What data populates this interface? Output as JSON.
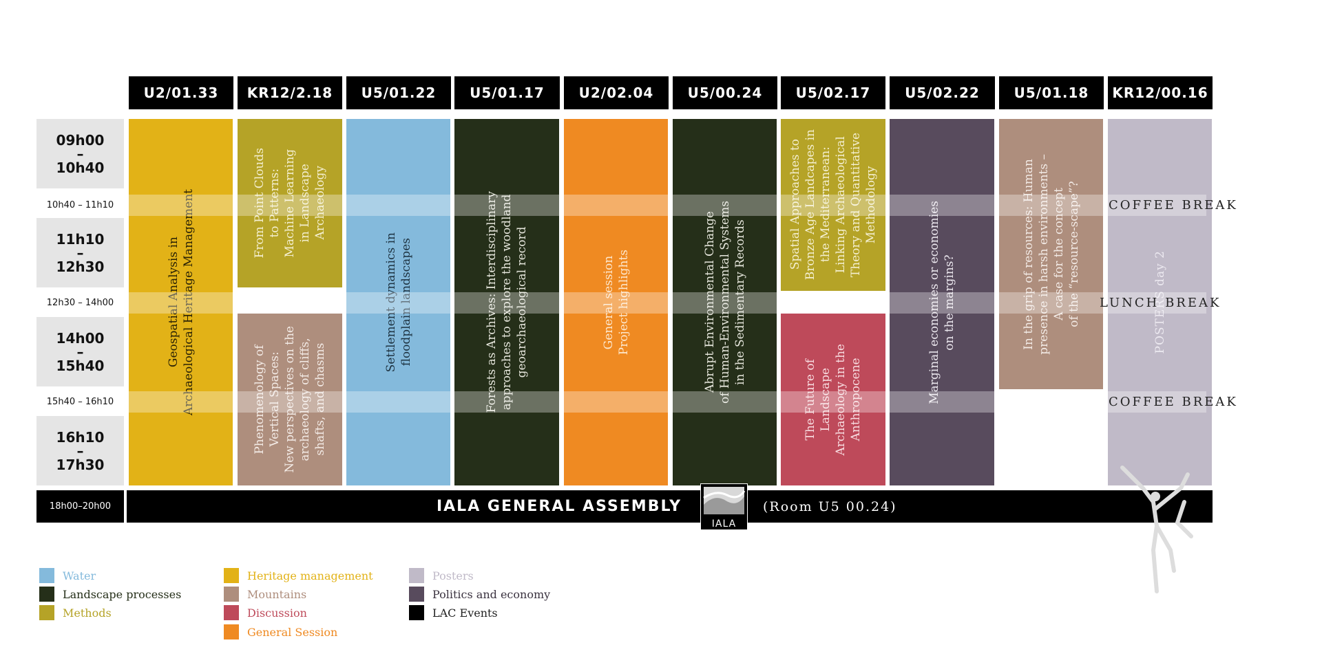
{
  "rooms": [
    "U2/01.33",
    "KR12/2.18",
    "U5/01.22",
    "U5/01.17",
    "U2/02.04",
    "U5/00.24",
    "U5/02.17",
    "U5/02.22",
    "U5/01.18",
    "KR12/00.16"
  ],
  "times": {
    "slot1": {
      "start": "09h00",
      "dash": "–",
      "end": "10h40"
    },
    "break1": "10h40 – 11h10",
    "slot2": {
      "start": "11h10",
      "dash": "–",
      "end": "12h30"
    },
    "break2": "12h30 – 14h00",
    "slot3": {
      "start": "14h00",
      "dash": "–",
      "end": "15h40"
    },
    "break3": "15h40 – 16h10",
    "slot4": {
      "start": "16h10",
      "dash": "–",
      "end": "17h30"
    },
    "evening": "18h00–20h00"
  },
  "breaks": {
    "coffee1": "COFFEE BREAK",
    "lunch": "LUNCH  BREAK",
    "coffee2": "COFFEE BREAK"
  },
  "sessions": [
    {
      "title": "Geospatial Analysis in\nArchaeological Heritage Management",
      "category": "Heritage management"
    },
    {
      "title": "From Point Clouds\nto Patterns:\nMachine Learning\nin Landscape\nArchaeology",
      "category": "Methods"
    },
    {
      "title": "Phenomenology of\nVertical Spaces:\nNew perspectives on the\narchaeology of cliffs,\nshafts, and chasms",
      "category": "Mountains"
    },
    {
      "title": "Settlement dynamics in\nfloodplain landscapes",
      "category": "Water"
    },
    {
      "title": "Forests as Archives: Interdisciplinary\napproaches to explore the woodland\ngeoarchaeological record",
      "category": "Landscape processes"
    },
    {
      "title": "General session\nProject highlights",
      "category": "General Session"
    },
    {
      "title": "Abrupt Environmental Change\nof Human-Environmental Systems\nin the Sedimentary Records",
      "category": "Landscape processes"
    },
    {
      "title": "Spatial Approaches to\nBronze Age Landcapes in\nthe Mediterranean:\nLinking Archaeological\nTheory and Quantitative\nMethodology",
      "category": "Methods"
    },
    {
      "title": "The Future of\nLandscape\nArchaeology in the\nAnthropocene",
      "category": "Discussion"
    },
    {
      "title": "Marginal economies or economies\non the margins?",
      "category": "Politics and economy"
    },
    {
      "title": "In the grip of resources: Human\npresence in harsh environments –\nA case for the concept\nof the “resource-scape”?",
      "category": "Mountains"
    },
    {
      "title": "POSTERS  day 2",
      "category": "Posters"
    }
  ],
  "assembly": {
    "title": "IALA GENERAL ASSEMBLY",
    "room": "(Room U5 00.24)",
    "logo_text": "IALA"
  },
  "legend": [
    {
      "label": "Water",
      "color": "#84BADC"
    },
    {
      "label": "Landscape processes",
      "color": "#252F19"
    },
    {
      "label": "Methods",
      "color": "#B5A327"
    },
    {
      "label": "Heritage management",
      "color": "#E2B217"
    },
    {
      "label": "Mountains",
      "color": "#AE8E7D"
    },
    {
      "label": "Discussion",
      "color": "#BE4A5A"
    },
    {
      "label": "General Session",
      "color": "#EF8A22"
    },
    {
      "label": "Posters",
      "color": "#C0BAC8"
    },
    {
      "label": "Politics and economy",
      "color": "#584B5D"
    },
    {
      "label": "LAC Events",
      "color": "#000000"
    }
  ]
}
